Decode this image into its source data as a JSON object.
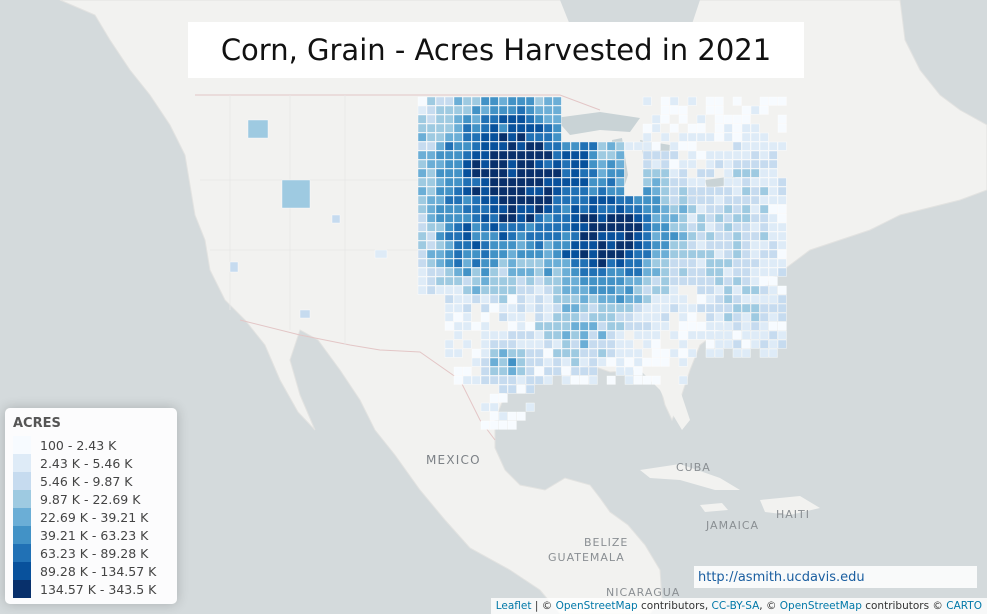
{
  "title": "Corn, Grain - Acres Harvested in 2021",
  "legend": {
    "title": "ACRES",
    "items": [
      {
        "label": "100 - 2.43 K",
        "color": "#f7fbff"
      },
      {
        "label": "2.43 K - 5.46 K",
        "color": "#deebf7"
      },
      {
        "label": "5.46 K - 9.87 K",
        "color": "#c6dbef"
      },
      {
        "label": "9.87 K - 22.69 K",
        "color": "#9ecae1"
      },
      {
        "label": "22.69 K - 39.21 K",
        "color": "#6baed6"
      },
      {
        "label": "39.21 K - 63.23 K",
        "color": "#4292c6"
      },
      {
        "label": "63.23 K - 89.28 K",
        "color": "#2171b5"
      },
      {
        "label": "89.28 K - 134.57 K",
        "color": "#08519c"
      },
      {
        "label": "134.57 K - 343.5 K",
        "color": "#08306b"
      }
    ]
  },
  "place_labels": {
    "mexico": "MEXICO",
    "cuba": "CUBA",
    "haiti": "HAITI",
    "jamaica": "JAMAICA",
    "belize": "BELIZE",
    "guatemala": "GUATEMALA",
    "nicaragua": "NICARAGUA"
  },
  "url": "http://asmith.ucdavis.edu",
  "attribution": {
    "leaflet": "Leaflet",
    "sep1": " | © ",
    "osm1": "OpenStreetMap",
    "contrib1": " contributors, ",
    "ccbysa": "CC-BY-SA",
    "sep2": ", © ",
    "osm2": "OpenStreetMap",
    "contrib2": " contributors © ",
    "carto": "CARTO"
  }
}
